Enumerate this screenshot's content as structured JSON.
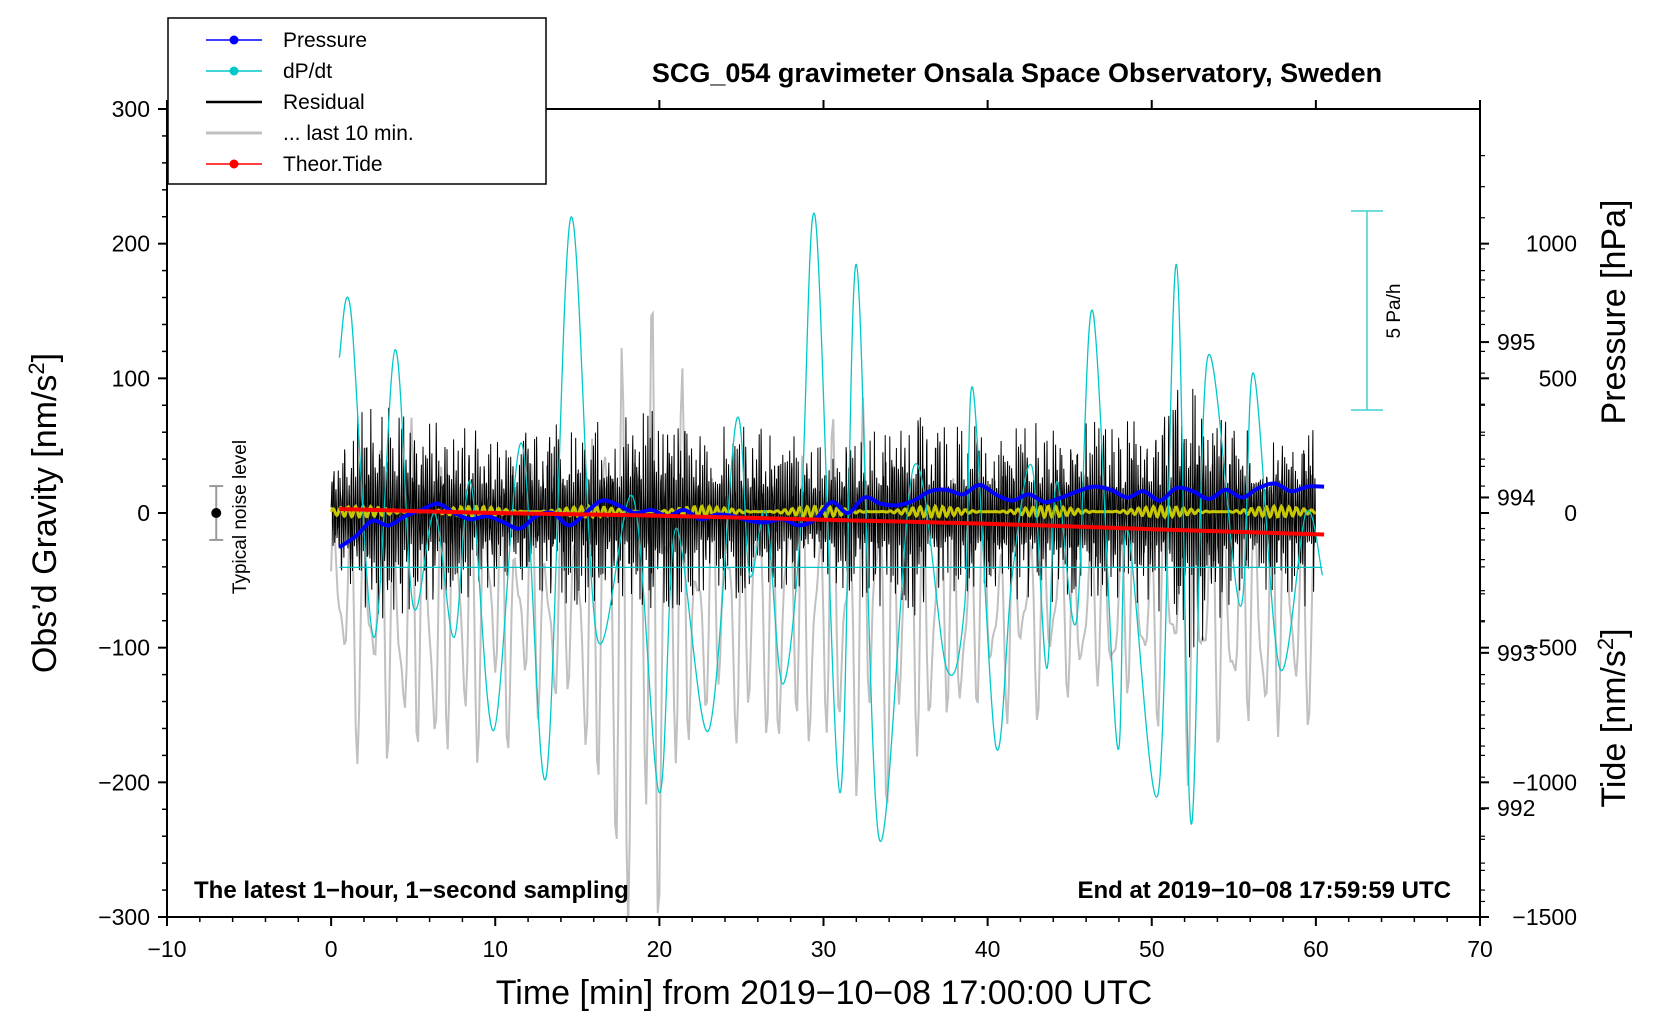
{
  "chart_data": {
    "type": "line",
    "title": "SCG_054 gravimeter Onsala Space Observatory, Sweden",
    "xlabel": "Time [min] from 2019−10−08 17:00:00 UTC",
    "ylabel_left_main": "Obs’d Gravity [nm/s",
    "ylabel_left_sup": "2",
    "ylabel_left_close": "]",
    "ylabel_right_top": "Pressure [hPa]",
    "ylabel_right_bottom_main": "Tide [nm/s",
    "ylabel_right_bottom_sup": "2",
    "ylabel_right_bottom_close": "]",
    "xlim": [
      -10,
      70
    ],
    "ylim_left": [
      -300,
      300
    ],
    "ylim_pressure": [
      991.3,
      996.5
    ],
    "ylim_tide": [
      -1500,
      1500
    ],
    "x_ticks": [
      -10,
      0,
      10,
      20,
      30,
      40,
      50,
      60,
      70
    ],
    "x_tick_labels": [
      "−10",
      "0",
      "10",
      "20",
      "30",
      "40",
      "50",
      "60",
      "70"
    ],
    "y_left_ticks": [
      300,
      200,
      100,
      0,
      -100,
      -200,
      -300
    ],
    "y_left_tick_labels": [
      "300",
      "200",
      "100",
      "0",
      "−100",
      "−200",
      "−300"
    ],
    "y_pressure_ticks": [
      995,
      994,
      993,
      992
    ],
    "y_pressure_tick_labels": [
      "995",
      "994",
      "993",
      "992"
    ],
    "y_tide_ticks": [
      1000,
      500,
      0,
      -500,
      -1000,
      -1500
    ],
    "y_tide_tick_labels": [
      "1000",
      "500",
      "0",
      "−500",
      "−1000",
      "−1500"
    ],
    "note_left": "The latest 1−hour, 1−second sampling",
    "note_right": "End at 2019−10−08 17:59:59 UTC",
    "noise_label": "Typical noise level",
    "noise_level": {
      "x": -7,
      "center": 0,
      "half_range": 20
    },
    "dpdt_scale_label": "5 Pa/h",
    "dpdt_baseline_hPa": 993.55,
    "legend": [
      {
        "name": "Pressure",
        "color": "#0000ff",
        "marker": true
      },
      {
        "name": "dP/dt",
        "color": "#00c8c8",
        "marker": true
      },
      {
        "name": "Residual",
        "color": "#000000",
        "marker": false
      },
      {
        "name": "... last 10 min.",
        "color": "#c0c0c0",
        "marker": false
      },
      {
        "name": "Theor.Tide",
        "color": "#ff0000",
        "marker": true
      }
    ],
    "series": [
      {
        "name": "Pressure",
        "axis": "pressure",
        "color": "#0000ff",
        "x": [
          0.5,
          1.5,
          2.5,
          3.5,
          4.5,
          5.5,
          6.5,
          7.5,
          8.5,
          9.5,
          10.5,
          11.5,
          12.5,
          13.5,
          14.5,
          15.5,
          16.5,
          17.5,
          18.5,
          19.5,
          20.5,
          21.5,
          22.5,
          23.5,
          24.5,
          25.5,
          26.5,
          27.5,
          28.5,
          29.5,
          30.5,
          31.5,
          32.5,
          33.5,
          34.5,
          35.5,
          36.5,
          37.5,
          38.5,
          39.5,
          40.5,
          41.5,
          42.5,
          43.5,
          44.5,
          45.5,
          46.5,
          47.5,
          48.5,
          49.5,
          50.5,
          51.5,
          52.5,
          53.5,
          54.5,
          55.5,
          56.5,
          57.5,
          58.5,
          59.5,
          60.5
        ],
        "values": [
          993.68,
          993.75,
          993.85,
          993.82,
          993.88,
          993.92,
          993.96,
          993.9,
          993.86,
          993.88,
          993.84,
          993.8,
          993.88,
          993.9,
          993.82,
          993.9,
          993.98,
          993.95,
          993.9,
          993.92,
          993.88,
          993.92,
          993.86,
          993.89,
          993.88,
          993.85,
          993.84,
          993.86,
          993.82,
          993.86,
          993.97,
          993.9,
          994.0,
          993.96,
          993.95,
          993.98,
          994.04,
          994.05,
          994.02,
          994.08,
          994.02,
          993.98,
          994.02,
          993.97,
          994.0,
          994.04,
          994.07,
          994.05,
          994.0,
          994.04,
          993.98,
          994.06,
          994.04,
          993.99,
          994.05,
          994.0,
          994.06,
          994.09,
          994.04,
          994.07,
          994.07
        ]
      },
      {
        "name": "dP/dt",
        "axis": "pressure",
        "color": "#00c8c8",
        "x": [
          0.5,
          1.2,
          2.6,
          3.9,
          5.0,
          6.3,
          7.5,
          8.5,
          9.9,
          11.6,
          13.1,
          14.6,
          16.2,
          18.4,
          20.0,
          21.0,
          23.0,
          24.7,
          25.5,
          26.5,
          27.5,
          28.6,
          29.5,
          31.0,
          32.0,
          33.4,
          35.5,
          37.5,
          38.6,
          39.1,
          40.5,
          41.5,
          42.7,
          43.6,
          44.2,
          45.4,
          46.4,
          47.9,
          48.5,
          50.4,
          51.5,
          52.4,
          53.4,
          55.4,
          56.2,
          57.8,
          59.4,
          60.4
        ],
        "values": [
          994.9,
          995.2,
          993.1,
          994.95,
          993.3,
          993.9,
          993.1,
          994.1,
          992.5,
          994.35,
          992.2,
          995.8,
          993.1,
          994.0,
          992.1,
          993.8,
          992.5,
          994.5,
          993.5,
          993.9,
          992.8,
          993.8,
          995.8,
          992.1,
          995.5,
          991.8,
          994.2,
          992.9,
          993.3,
          994.7,
          992.4,
          993.5,
          994.2,
          992.9,
          994.1,
          993.2,
          995.2,
          992.4,
          993.8,
          992.1,
          995.5,
          991.9,
          994.9,
          993.3,
          994.8,
          992.9,
          993.9,
          993.5
        ]
      },
      {
        "name": "Theor.Tide",
        "axis": "tide",
        "color": "#ff0000",
        "x": [
          0.5,
          10,
          20,
          30,
          40,
          50,
          60.5
        ],
        "values": [
          15,
          0,
          -10,
          -25,
          -40,
          -60,
          -80
        ]
      }
    ],
    "residual": {
      "axis": "left",
      "color": "#000000",
      "x_range": [
        0,
        60
      ],
      "amplitude_envelope": {
        "x": [
          0,
          2.5,
          5,
          7.5,
          10,
          12.5,
          15,
          17.5,
          20,
          22.5,
          25,
          27.5,
          30,
          32.5,
          35,
          37.5,
          40,
          42.5,
          45,
          47.5,
          50,
          52.5,
          55,
          57.5,
          60
        ],
        "values": [
          45,
          100,
          80,
          70,
          60,
          65,
          75,
          70,
          90,
          65,
          70,
          60,
          55,
          65,
          85,
          65,
          70,
          70,
          75,
          70,
          70,
          115,
          65,
          65,
          75
        ]
      },
      "smoothed": {
        "color": "#c8c800",
        "offset": 1,
        "amplitude": 4
      }
    },
    "last_10_min": {
      "axis": "tide",
      "color": "#c0c0c0",
      "x_range": [
        0,
        60
      ],
      "center": -350,
      "amplitude_envelope": {
        "x": [
          0,
          5,
          10,
          15,
          17.5,
          20,
          22.5,
          25,
          30,
          33,
          35,
          37.5,
          40,
          45,
          50,
          52.5,
          55,
          57.5,
          60
        ],
        "values": [
          500,
          800,
          600,
          500,
          1400,
          1400,
          500,
          600,
          700,
          900,
          700,
          600,
          500,
          400,
          450,
          700,
          600,
          650,
          450
        ]
      }
    }
  }
}
